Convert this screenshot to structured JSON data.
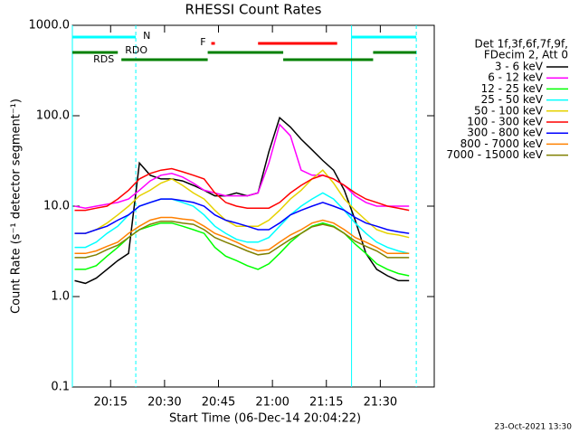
{
  "chart_data": {
    "type": "line",
    "title": "RHESSI Count Rates",
    "xlabel": "Start Time (06-Dec-14 20:04:22)",
    "ylabel": "Count Rate (s⁻¹ detector segment⁻¹)",
    "log_y": true,
    "xlim": [
      "20:04:22",
      "21:45"
    ],
    "xticks": [
      "20:15",
      "20:30",
      "20:45",
      "21:00",
      "21:15",
      "21:30"
    ],
    "ylim": [
      0.1,
      1000
    ],
    "yticks": [
      0.1,
      {
        "value": 1,
        "label": "1.0"
      },
      {
        "value": 10,
        "label": "10.0"
      },
      {
        "value": 100,
        "label": "100.0"
      },
      {
        "value": 1000,
        "label": "1000.0"
      }
    ],
    "legend_title": [
      "Det 1f,3f,6f,7f,9f,",
      "FDecim 2, Att 0"
    ],
    "legend_position": "right",
    "timestamp": "23-Oct-2021 13:30",
    "x": [
      "20:05",
      "20:08",
      "20:11",
      "20:14",
      "20:17",
      "20:20",
      "20:23",
      "20:26",
      "20:29",
      "20:32",
      "20:35",
      "20:38",
      "20:41",
      "20:44",
      "20:47",
      "20:50",
      "20:53",
      "20:56",
      "20:59",
      "21:02",
      "21:05",
      "21:08",
      "21:11",
      "21:14",
      "21:17",
      "21:20",
      "21:23",
      "21:26",
      "21:29",
      "21:32",
      "21:35",
      "21:38"
    ],
    "series": [
      {
        "name": "3 - 6 keV",
        "color": "#000000",
        "values": [
          1.5,
          1.4,
          1.6,
          2,
          2.5,
          3,
          30,
          22,
          20,
          20,
          19,
          17,
          15,
          13,
          13,
          14,
          13,
          14,
          40,
          95,
          75,
          55,
          42,
          32,
          25,
          15,
          7,
          3,
          2,
          1.7,
          1.5,
          1.5
        ]
      },
      {
        "name": "6 - 12 keV",
        "color": "#ff00ff",
        "values": [
          10,
          9.5,
          10,
          10.5,
          11,
          12,
          15,
          19,
          22,
          23,
          21,
          18,
          15,
          14,
          13,
          13,
          13,
          14,
          30,
          80,
          60,
          25,
          22,
          22,
          20,
          17,
          13,
          11,
          10,
          10,
          10,
          10
        ]
      },
      {
        "name": "12 - 25 keV",
        "color": "#00ff00",
        "values": [
          2,
          2,
          2.2,
          2.8,
          3.5,
          4.5,
          5.5,
          6,
          6.5,
          6.5,
          6,
          5.5,
          5,
          3.5,
          2.8,
          2.5,
          2.2,
          2,
          2.3,
          3,
          4,
          5,
          6,
          6.5,
          6,
          5,
          3.8,
          3,
          2.3,
          2,
          1.8,
          1.7
        ]
      },
      {
        "name": "25 - 50 keV",
        "color": "#00ffff",
        "values": [
          3.5,
          3.5,
          4,
          5,
          6,
          8,
          10,
          11,
          12,
          12,
          11,
          10,
          8,
          6,
          5,
          4.3,
          4,
          4,
          4.5,
          6,
          8,
          10,
          12,
          14,
          12,
          9,
          6.5,
          5,
          4,
          3.5,
          3.2,
          3
        ]
      },
      {
        "name": "50 - 100 keV",
        "color": "#e6d200",
        "values": [
          5,
          5,
          5.5,
          6.5,
          8,
          10,
          13,
          15,
          18,
          20,
          17,
          14,
          12,
          9,
          7,
          6,
          6,
          6,
          7,
          9,
          12,
          15,
          20,
          25,
          18,
          12,
          9,
          7,
          5.5,
          5,
          4.8,
          4.5
        ]
      },
      {
        "name": "100 - 300 keV",
        "color": "#ff0000",
        "values": [
          9,
          9,
          9.5,
          10,
          12,
          15,
          20,
          23,
          25,
          26,
          24,
          22,
          20,
          14,
          11,
          10,
          9.5,
          9.5,
          9.5,
          11,
          14,
          17,
          20,
          22,
          20,
          17,
          14,
          12,
          11,
          10,
          9.5,
          9
        ]
      },
      {
        "name": "300 - 800 keV",
        "color": "#0000ff",
        "values": [
          5,
          5,
          5.5,
          6,
          7,
          8,
          10,
          11,
          12,
          12,
          11.5,
          11,
          10,
          8,
          7,
          6.5,
          6,
          5.5,
          5.5,
          6.5,
          8,
          9,
          10,
          11,
          10,
          9,
          7.5,
          6.5,
          6,
          5.5,
          5.2,
          5
        ]
      },
      {
        "name": "800 - 7000 keV",
        "color": "#ff8000",
        "values": [
          3,
          3,
          3.2,
          3.6,
          4,
          5,
          6,
          7,
          7.5,
          7.5,
          7.2,
          7,
          6,
          5,
          4.5,
          4,
          3.5,
          3.2,
          3.3,
          4,
          4.8,
          5.5,
          6.5,
          7,
          6.5,
          5.5,
          4.5,
          4,
          3.5,
          3,
          3,
          3
        ]
      },
      {
        "name": "7000 - 15000 keV",
        "color": "#808000",
        "values": [
          2.7,
          2.7,
          2.9,
          3.3,
          3.7,
          4.5,
          5.5,
          6.3,
          6.8,
          6.8,
          6.5,
          6.3,
          5.5,
          4.5,
          4,
          3.6,
          3.2,
          2.9,
          3,
          3.6,
          4.3,
          5,
          5.9,
          6.3,
          5.9,
          5,
          4.1,
          3.6,
          3.2,
          2.7,
          2.7,
          2.7
        ]
      }
    ],
    "flags": [
      {
        "label": "N",
        "color": "#00ffff",
        "spans": [
          [
            "20:04:22",
            "20:22"
          ],
          [
            "21:22",
            "21:40"
          ]
        ]
      },
      {
        "label": "F",
        "color": "#ff0000",
        "spans": [
          [
            "20:43",
            "20:44"
          ],
          [
            "20:56",
            "21:18"
          ]
        ]
      },
      {
        "label": "RDO",
        "color": "#008000",
        "spans": [
          [
            "20:04:22",
            "20:17"
          ],
          [
            "20:42",
            "21:03"
          ],
          [
            "21:28",
            "21:40"
          ]
        ]
      },
      {
        "label": "RDS",
        "color": "#008000",
        "spans": [
          [
            "20:18",
            "20:42"
          ],
          [
            "21:03",
            "21:28"
          ]
        ]
      }
    ],
    "vlines": [
      {
        "x": "20:04:22",
        "style": "solid",
        "color": "#00ffff"
      },
      {
        "x": "20:22",
        "style": "dashed",
        "color": "#00ffff"
      },
      {
        "x": "21:22",
        "style": "solid",
        "color": "#00ffff"
      },
      {
        "x": "21:40",
        "style": "dashed",
        "color": "#00ffff"
      }
    ]
  }
}
